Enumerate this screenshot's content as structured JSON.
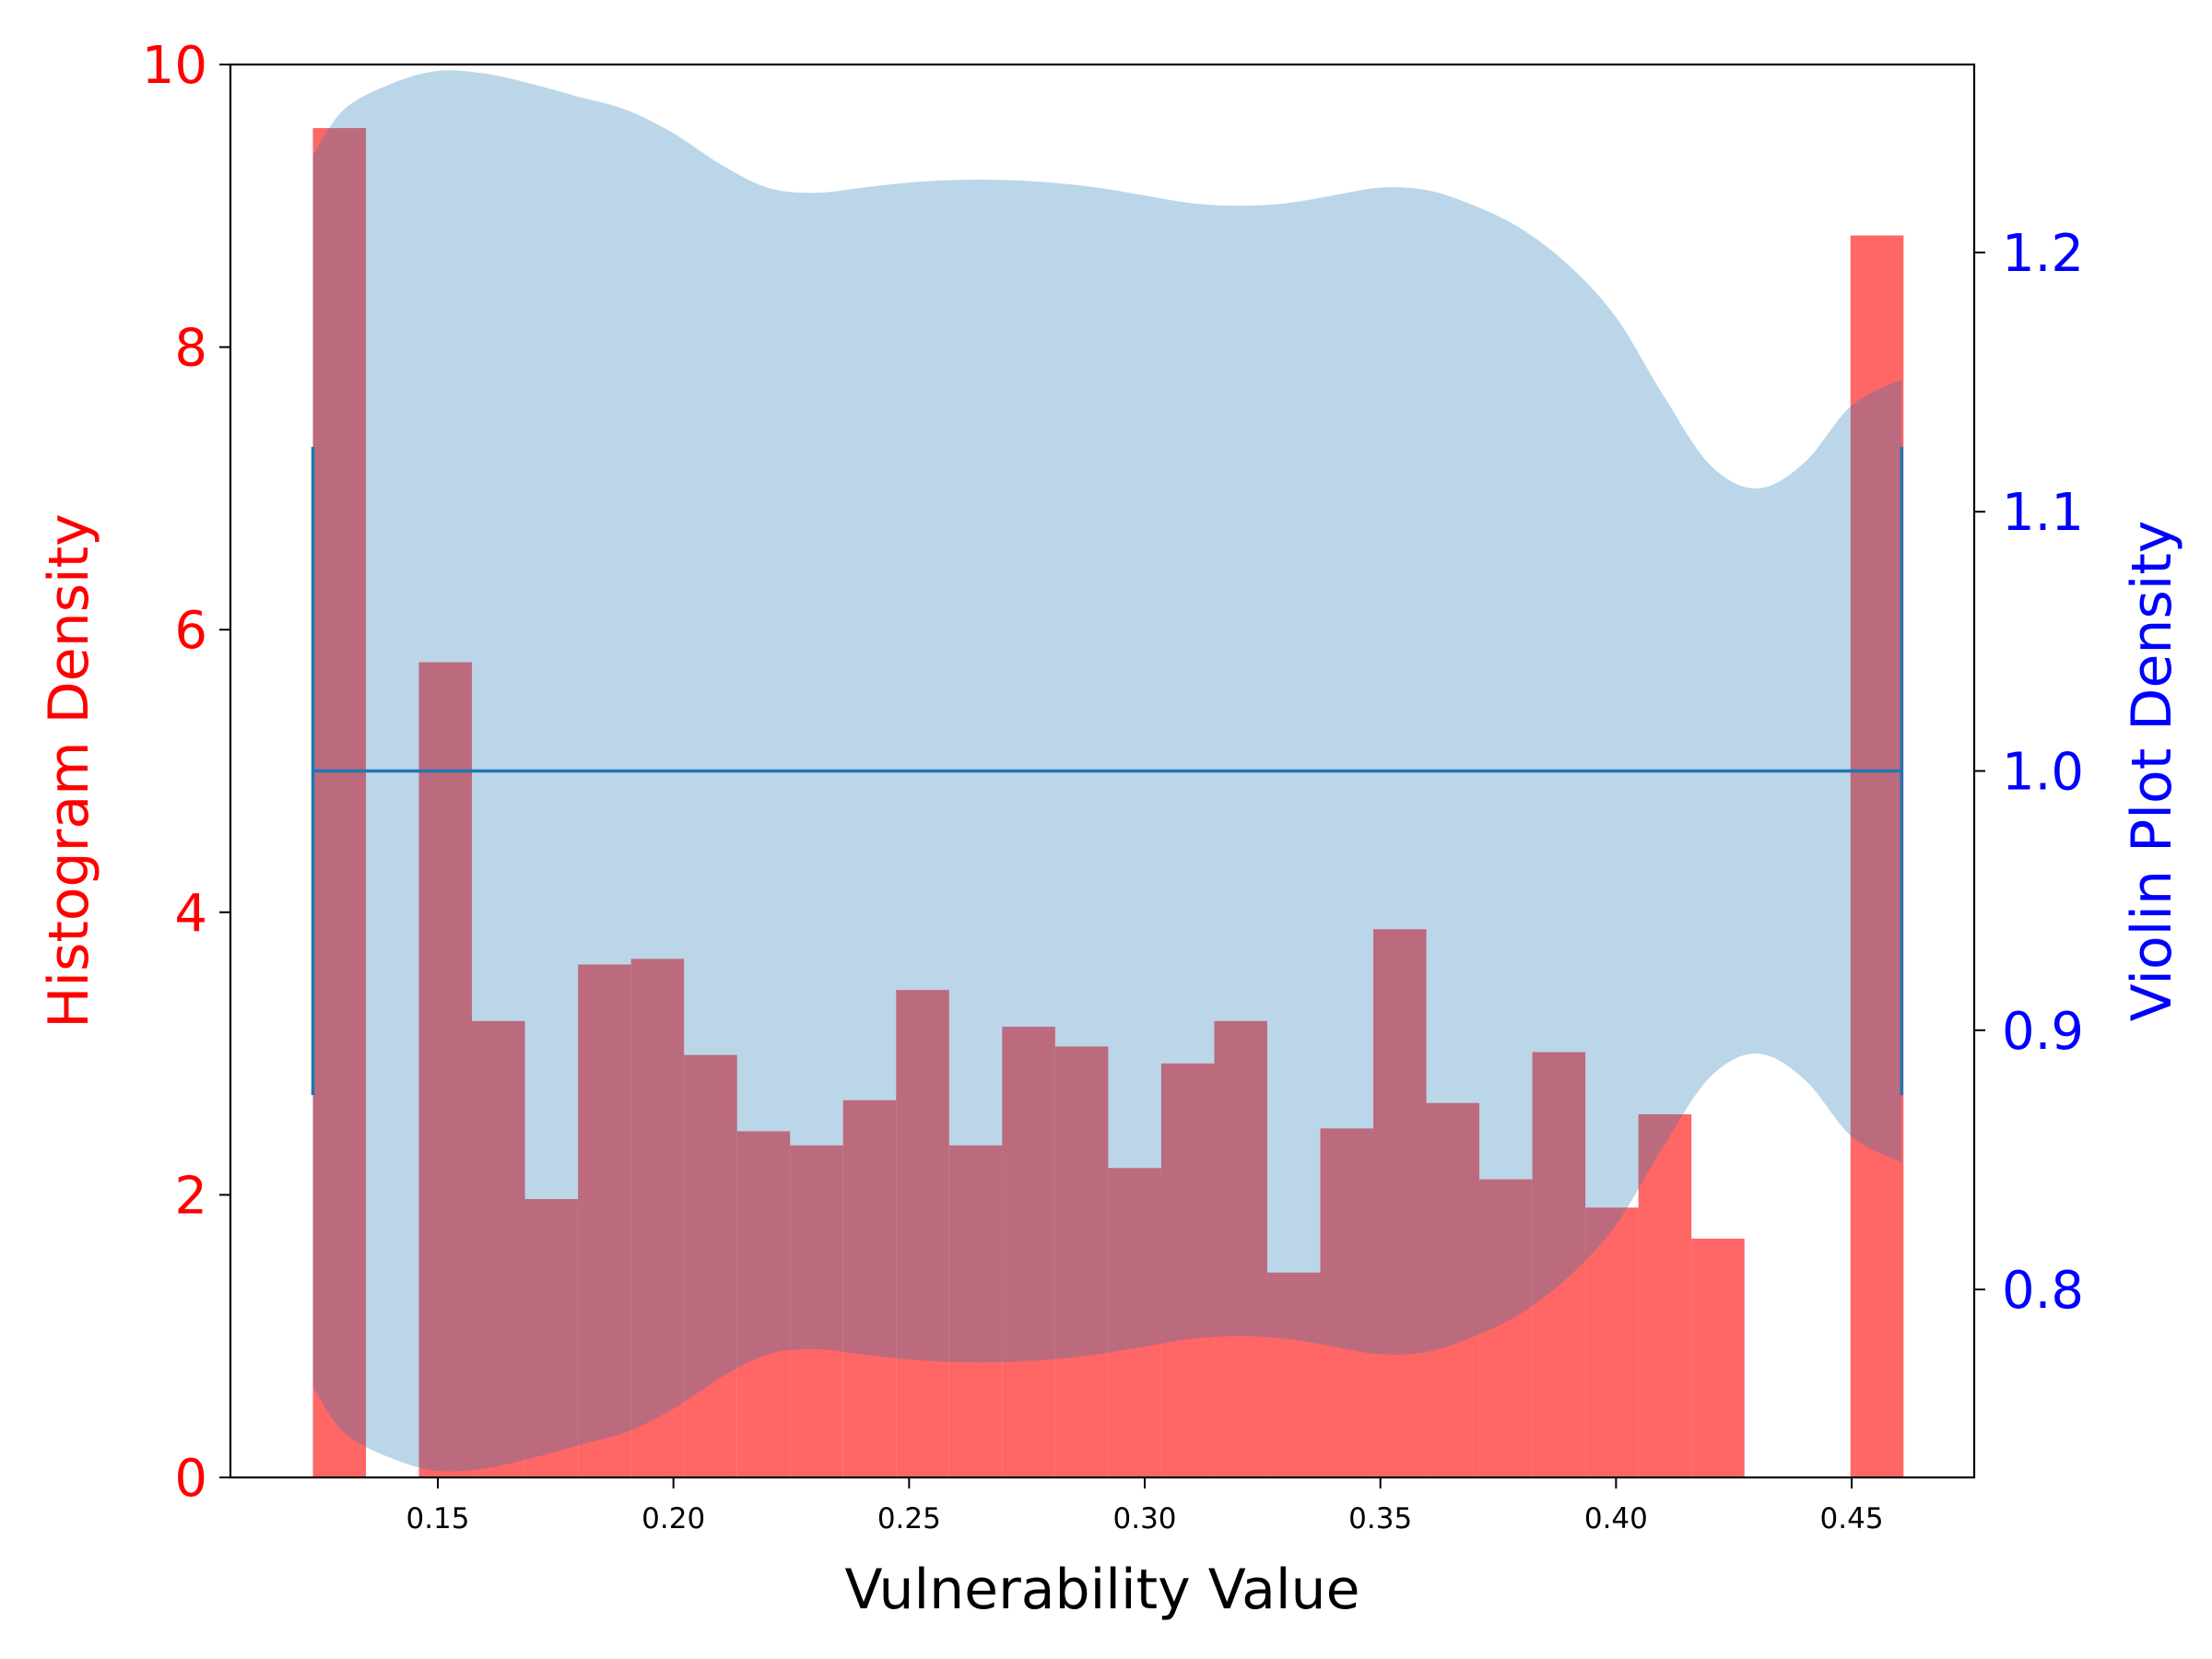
{
  "chart_data": {
    "type": "bar",
    "xlabel": "Vulnerability Value",
    "ylabel_left": "Histogram Density",
    "ylabel_right": "Violin Plot Density",
    "xlim": [
      0.106,
      0.476
    ],
    "ylim_left": [
      0,
      10
    ],
    "ylim_right": [
      0.7275,
      1.2725
    ],
    "x_ticks": [
      {
        "value": 0.15,
        "label": "0.15"
      },
      {
        "value": 0.2,
        "label": "0.20"
      },
      {
        "value": 0.25,
        "label": "0.25"
      },
      {
        "value": 0.3,
        "label": "0.30"
      },
      {
        "value": 0.35,
        "label": "0.35"
      },
      {
        "value": 0.4,
        "label": "0.40"
      },
      {
        "value": 0.45,
        "label": "0.45"
      }
    ],
    "y_left_ticks": [
      {
        "value": 0,
        "label": "0"
      },
      {
        "value": 2,
        "label": "2"
      },
      {
        "value": 4,
        "label": "4"
      },
      {
        "value": 6,
        "label": "6"
      },
      {
        "value": 8,
        "label": "8"
      },
      {
        "value": 10,
        "label": "10"
      }
    ],
    "y_right_ticks": [
      {
        "value": 0.8,
        "label": "0.8"
      },
      {
        "value": 0.9,
        "label": "0.9"
      },
      {
        "value": 1.0,
        "label": "1.0"
      },
      {
        "value": 1.1,
        "label": "1.1"
      },
      {
        "value": 1.2,
        "label": "1.2"
      }
    ],
    "histogram": {
      "color": "#ff6666",
      "bin_start": 0.1235,
      "bin_width": 0.01125,
      "densities": [
        9.55,
        0,
        5.77,
        3.23,
        1.97,
        3.63,
        3.67,
        2.99,
        2.45,
        2.35,
        2.67,
        3.45,
        2.35,
        3.19,
        3.05,
        2.19,
        2.93,
        3.23,
        1.45,
        2.47,
        3.88,
        2.65,
        2.11,
        3.01,
        1.91,
        2.57,
        1.69,
        0,
        0,
        8.79
      ]
    },
    "violin": {
      "color": "#bcd5e8",
      "center": 1.0,
      "x": [
        0.1235,
        0.13,
        0.14,
        0.15,
        0.16,
        0.17,
        0.18,
        0.19,
        0.2,
        0.21,
        0.22,
        0.23,
        0.24,
        0.25,
        0.26,
        0.27,
        0.28,
        0.29,
        0.3,
        0.31,
        0.32,
        0.33,
        0.34,
        0.35,
        0.36,
        0.37,
        0.38,
        0.39,
        0.4,
        0.41,
        0.42,
        0.43,
        0.44,
        0.45,
        0.4606
      ],
      "half_width": [
        0.2375,
        0.255,
        0.265,
        0.27,
        0.269,
        0.265,
        0.26,
        0.255,
        0.246,
        0.234,
        0.225,
        0.223,
        0.225,
        0.227,
        0.228,
        0.228,
        0.227,
        0.225,
        0.222,
        0.219,
        0.218,
        0.219,
        0.222,
        0.225,
        0.224,
        0.218,
        0.209,
        0.195,
        0.175,
        0.145,
        0.118,
        0.109,
        0.119,
        0.141,
        0.151
      ]
    },
    "range_line": {
      "color": "#1f77b4",
      "xmin": 0.1235,
      "xmax": 0.4606,
      "y": 1.0,
      "cap_low": 0.875,
      "cap_high": 1.125
    },
    "grid": false,
    "legend": "none"
  }
}
